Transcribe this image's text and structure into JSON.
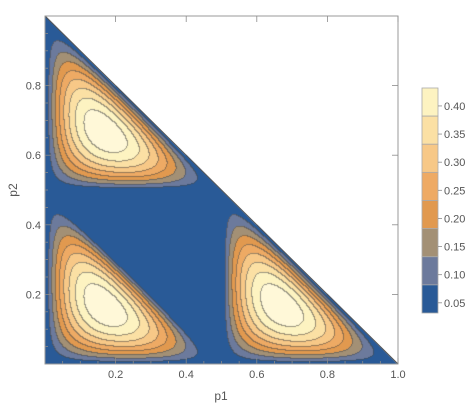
{
  "chart_data": {
    "type": "contour",
    "xlabel": "p1",
    "ylabel": "p2",
    "xlim": [
      0,
      1
    ],
    "ylim": [
      0,
      1
    ],
    "domain": "simplex: p1 >= 0, p2 >= 0, p1 + p2 <= 1",
    "x_ticks": [
      "0.2",
      "0.4",
      "0.6",
      "0.8",
      "1.0"
    ],
    "y_ticks": [
      "0.2",
      "0.4",
      "0.6",
      "0.8"
    ],
    "x_tick_values": [
      0.2,
      0.4,
      0.6,
      0.8,
      1.0
    ],
    "y_tick_values": [
      0.2,
      0.4,
      0.6,
      0.8
    ],
    "contour_levels": [
      0.05,
      0.1,
      0.15,
      0.2,
      0.25,
      0.3,
      0.35,
      0.4
    ],
    "value_range": [
      0,
      0.4444
    ],
    "peaks": [
      {
        "p1": 0.1667,
        "p2": 0.6667,
        "value": 0.4444
      },
      {
        "p1": 0.1667,
        "p2": 0.1667,
        "value": 0.4444
      },
      {
        "p1": 0.6667,
        "p2": 0.1667,
        "value": 0.4444
      }
    ],
    "legend": {
      "placement": "right",
      "labels": [
        "0.40",
        "0.35",
        "0.30",
        "0.25",
        "0.20",
        "0.15",
        "0.10",
        "0.05"
      ],
      "colors": [
        "#fdf3c1",
        "#fbe0a4",
        "#f7c887",
        "#eeaa64",
        "#e1994f",
        "#a39075",
        "#6c7a9c",
        "#295a97"
      ]
    },
    "band_colors": [
      "#295a97",
      "#6c7a9c",
      "#a39075",
      "#e1994f",
      "#eeaa64",
      "#f7c887",
      "#fbe0a4",
      "#fdf3c1",
      "#fff8d8"
    ]
  }
}
